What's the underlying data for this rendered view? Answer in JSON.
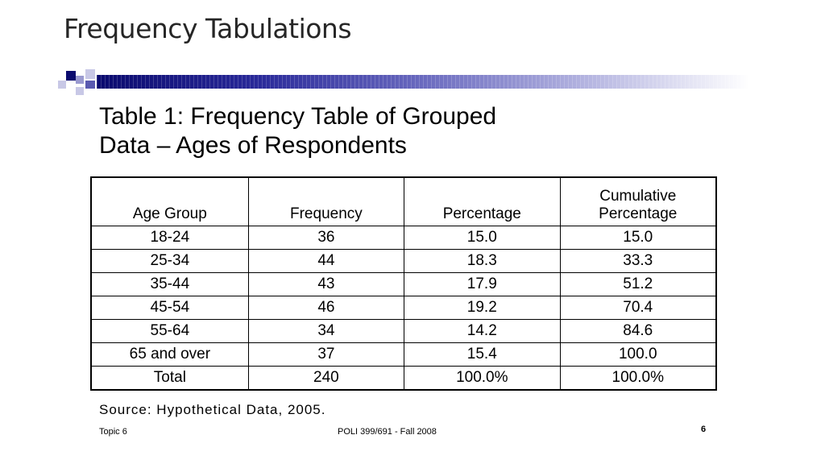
{
  "slide": {
    "title": "Frequency Tabulations"
  },
  "table": {
    "heading_line1": "Table 1: Frequency Table of Grouped",
    "heading_line2": "Data – Ages of Respondents",
    "columns": [
      "Age Group",
      "Frequency",
      "Percentage",
      "Cumulative\nPercentage"
    ],
    "rows": [
      [
        "18-24",
        "36",
        "15.0",
        "15.0"
      ],
      [
        "25-34",
        "44",
        "18.3",
        "33.3"
      ],
      [
        "35-44",
        "43",
        "17.9",
        "51.2"
      ],
      [
        "45-54",
        "46",
        "19.2",
        "70.4"
      ],
      [
        "55-64",
        "34",
        "14.2",
        "84.6"
      ],
      [
        "65 and over",
        "37",
        "15.4",
        "100.0"
      ],
      [
        "Total",
        "240",
        "100.0%",
        "100.0%"
      ]
    ],
    "source": "Source: Hypothetical Data, 2005."
  },
  "footer": {
    "left": "Topic 6",
    "center": "POLI 399/691 - Fall 2008",
    "page_number": "6"
  },
  "colors": {
    "bar_dark": "#0a0a6e",
    "bar_light": "#b4b4e0",
    "title_text": "#262626"
  }
}
